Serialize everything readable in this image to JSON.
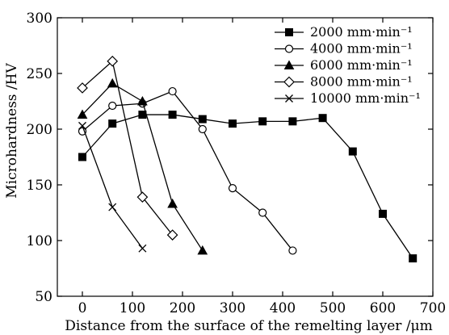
{
  "chart_data": {
    "type": "line",
    "xlabel": "Distance from the surface of the remelting layer /μm",
    "ylabel": "Microhardness /HV",
    "xlim": [
      -50,
      700
    ],
    "ylim": [
      50,
      300
    ],
    "xticks": [
      "0",
      "100",
      "200",
      "300",
      "400",
      "500",
      "600",
      "700"
    ],
    "xtick_values": [
      0,
      100,
      200,
      300,
      400,
      500,
      600,
      700
    ],
    "yticks": [
      "50",
      "100",
      "150",
      "200",
      "250",
      "300"
    ],
    "ytick_values": [
      50,
      100,
      150,
      200,
      250,
      300
    ],
    "grid": false,
    "legend_position": "top-right",
    "series": [
      {
        "name": "2000 mm·min⁻¹",
        "marker": "filled-square",
        "x": [
          0,
          60,
          120,
          180,
          240,
          300,
          360,
          420,
          480,
          540,
          600,
          660
        ],
        "y": [
          175,
          205,
          213,
          213,
          209,
          205,
          207,
          207,
          210,
          180,
          124,
          84
        ]
      },
      {
        "name": "4000 mm·min⁻¹",
        "marker": "open-circle",
        "x": [
          0,
          60,
          120,
          180,
          240,
          300,
          360,
          420
        ],
        "y": [
          198,
          221,
          223,
          234,
          200,
          147,
          125,
          91
        ]
      },
      {
        "name": "6000 mm·min⁻¹",
        "marker": "filled-triangle",
        "x": [
          0,
          60,
          120,
          180,
          240
        ],
        "y": [
          213,
          241,
          225,
          133,
          91
        ]
      },
      {
        "name": "8000 mm·min⁻¹",
        "marker": "open-diamond",
        "x": [
          0,
          60,
          120,
          180
        ],
        "y": [
          237,
          261,
          139,
          105
        ]
      },
      {
        "name": "10000 mm·min⁻¹",
        "marker": "cross",
        "x": [
          0,
          60,
          120
        ],
        "y": [
          203,
          130,
          93
        ]
      }
    ]
  }
}
